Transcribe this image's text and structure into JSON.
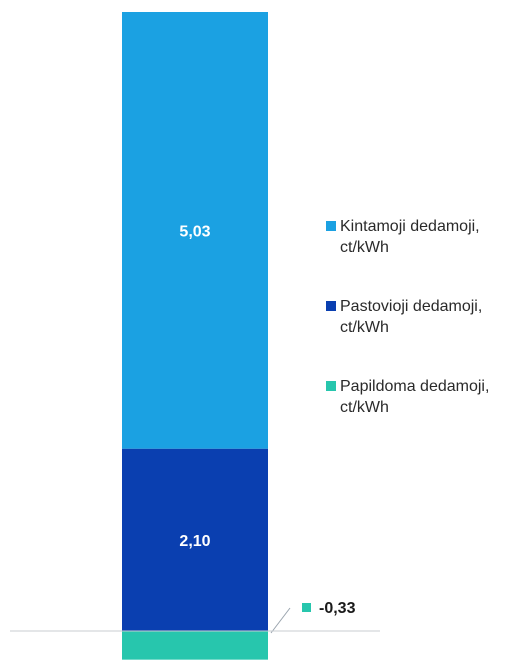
{
  "chart_data": {
    "type": "bar",
    "stacked": true,
    "categories": [
      ""
    ],
    "series": [
      {
        "name": "Kintamoji dedamoji, ct/kWh",
        "values": [
          5.03
        ],
        "label": "5,03",
        "color": "#1ba1e2"
      },
      {
        "name": "Pastovioji dedamoji, ct/kWh",
        "values": [
          2.1
        ],
        "label": "2,10",
        "color": "#0a3fb0"
      },
      {
        "name": "Papildoma dedamoji, ct/kWh",
        "values": [
          -0.33
        ],
        "label": "-0,33",
        "color": "#27c6ad"
      }
    ],
    "legend": "right",
    "grid": false,
    "baseline": 0
  },
  "legend_items": [
    {
      "line1": "Kintamoji dedamoji,",
      "line2": "ct/kWh",
      "color": "#1ba1e2"
    },
    {
      "line1": "Pastovioji dedamoji,",
      "line2": "ct/kWh",
      "color": "#0a3fb0"
    },
    {
      "line1": "Papildoma dedamoji,",
      "line2": "ct/kWh",
      "color": "#27c6ad"
    }
  ]
}
